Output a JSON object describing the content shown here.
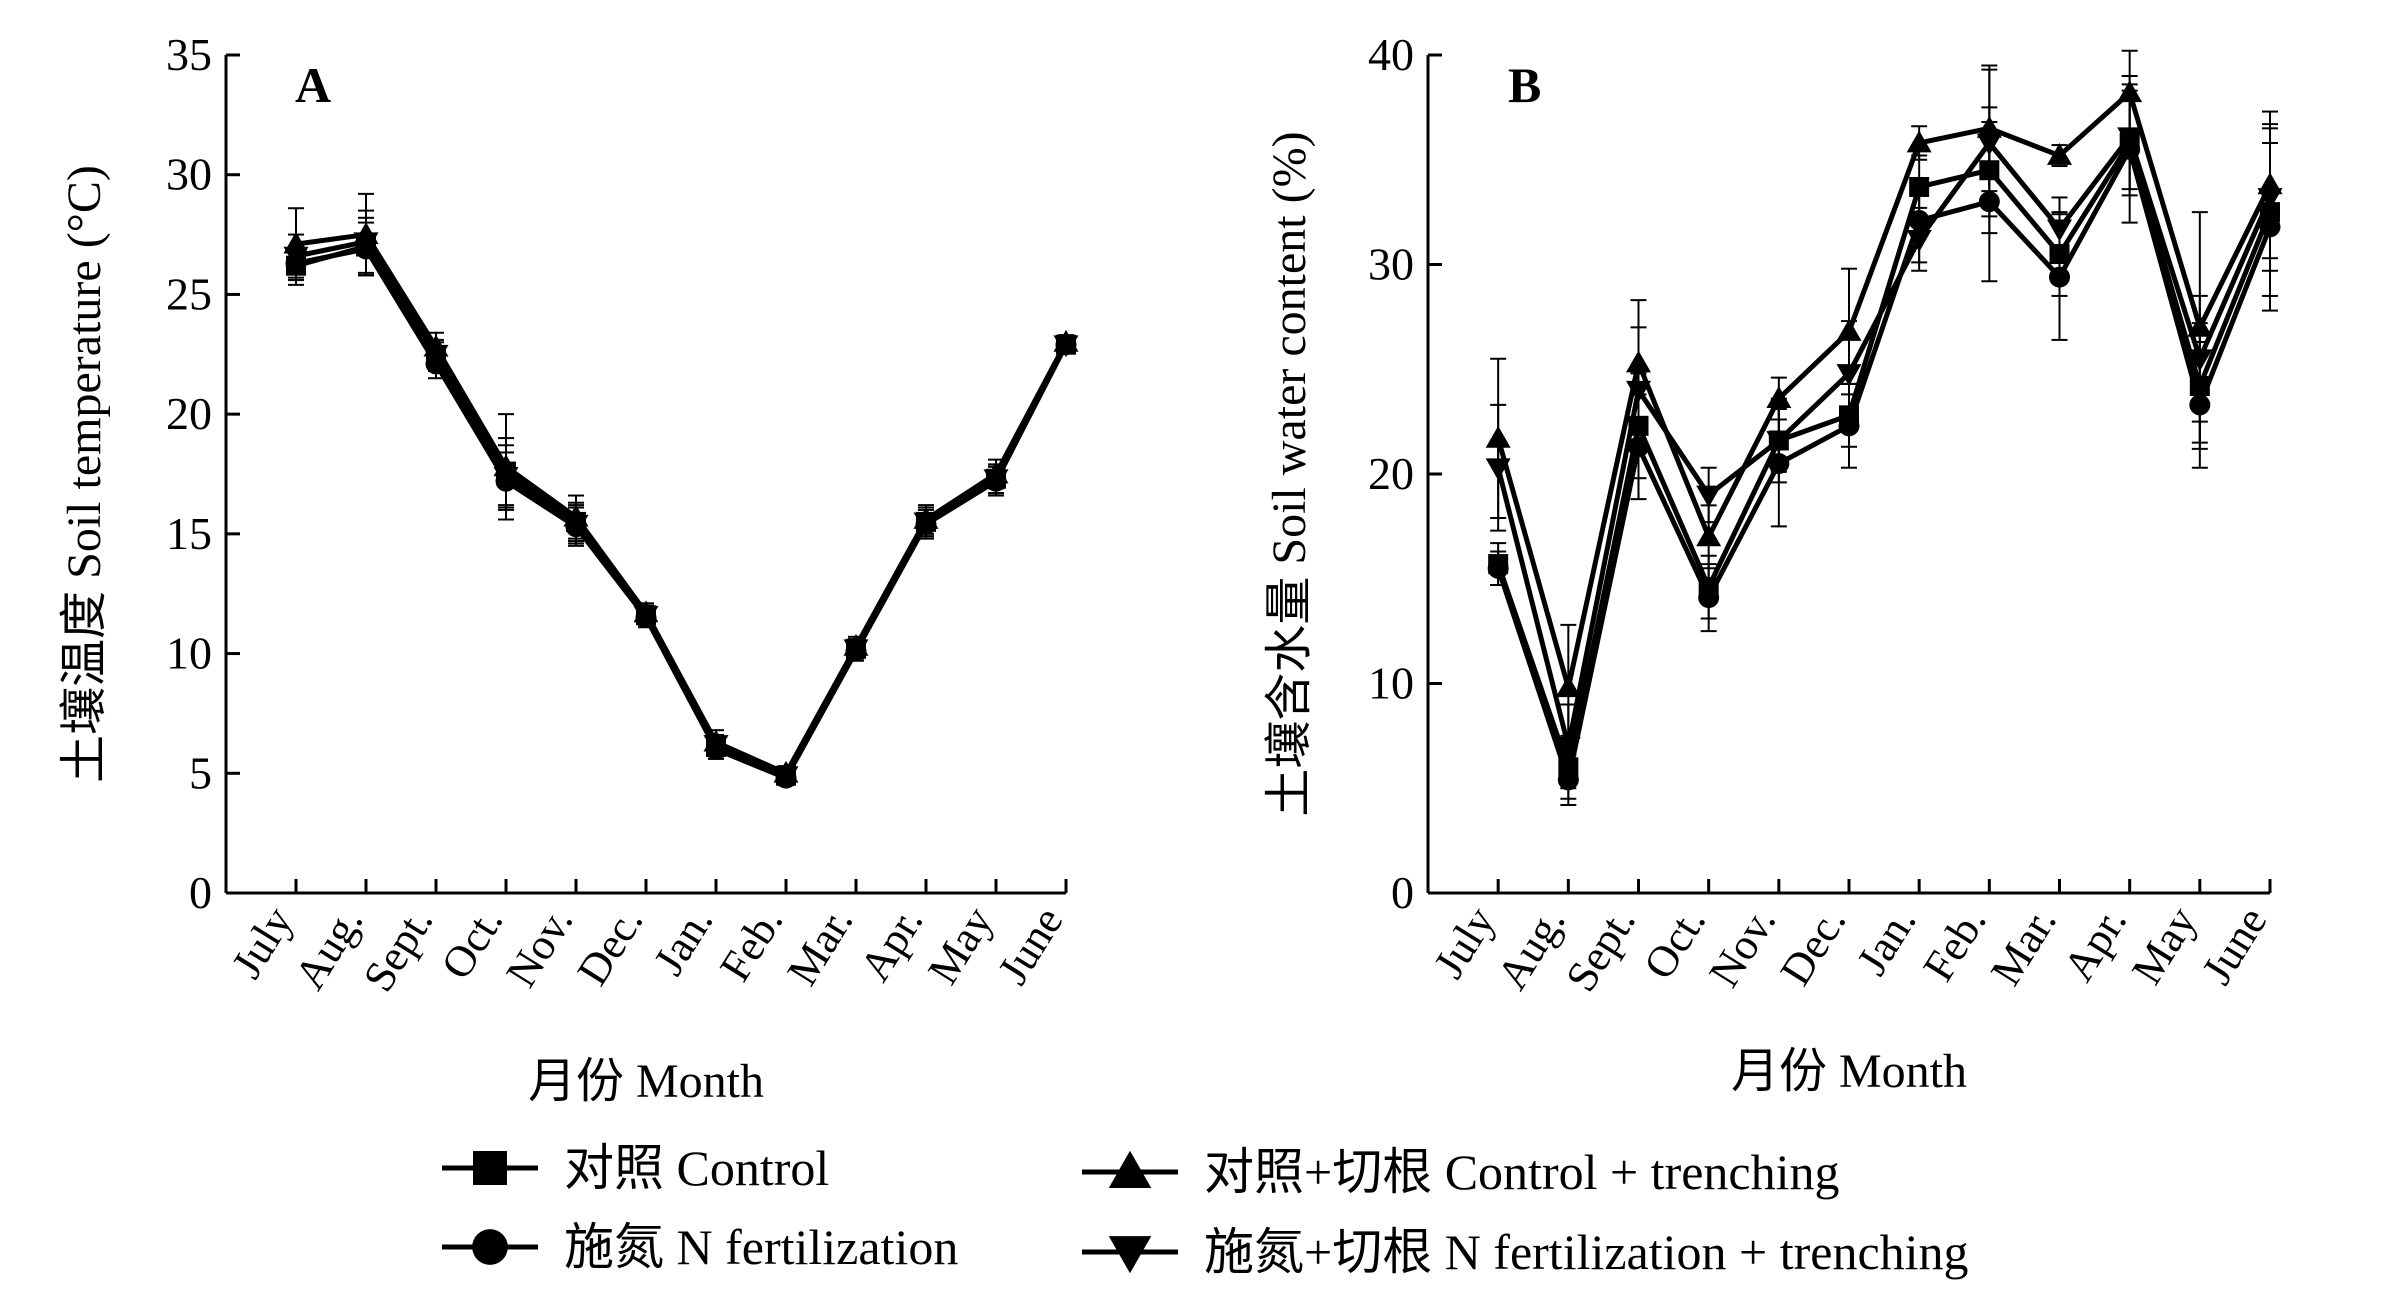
{
  "legend": {
    "items": [
      {
        "label": "对照 Control",
        "marker": "square"
      },
      {
        "label": "施氮 N fertilization",
        "marker": "circle"
      },
      {
        "label": "对照+切根 Control + trenching",
        "marker": "triangle-up"
      },
      {
        "label": "施氮+切根 N fertilization + trenching",
        "marker": "triangle-down"
      }
    ]
  },
  "chart_data": [
    {
      "type": "line",
      "panel": "A",
      "xlabel": "月份 Month",
      "ylabel": "土壤温度 Soil temperature (°C)",
      "ylim": [
        0,
        35
      ],
      "yticks": [
        "0",
        "5",
        "10",
        "15",
        "20",
        "25",
        "30",
        "35"
      ],
      "categories": [
        "July",
        "Aug.",
        "Sept.",
        "Oct.",
        "Nov.",
        "Dec.",
        "Jan.",
        "Feb.",
        "Mar.",
        "Apr.",
        "May",
        "June"
      ],
      "series": [
        {
          "name": "对照 Control",
          "marker": "square",
          "values": [
            26.2,
            27.0,
            22.4,
            17.6,
            15.5,
            11.6,
            6.1,
            4.9,
            10.2,
            15.5,
            17.3,
            22.9
          ],
          "errors": [
            0.8,
            1.2,
            0.6,
            1.4,
            0.8,
            0.4,
            0.4,
            0.3,
            0.4,
            0.6,
            0.6,
            0.3
          ]
        },
        {
          "name": "施氮 N fertilization",
          "marker": "circle",
          "values": [
            26.3,
            26.9,
            22.1,
            17.2,
            15.3,
            11.5,
            6.0,
            4.8,
            10.1,
            15.4,
            17.2,
            22.9
          ],
          "errors": [
            0.7,
            1.1,
            0.6,
            1.2,
            0.8,
            0.4,
            0.4,
            0.3,
            0.4,
            0.6,
            0.6,
            0.3
          ]
        },
        {
          "name": "对照+切根 Control + trenching",
          "marker": "triangle-up",
          "values": [
            27.1,
            27.5,
            22.8,
            17.8,
            15.7,
            11.7,
            6.3,
            5.0,
            10.3,
            15.6,
            17.5,
            23.0
          ],
          "errors": [
            1.5,
            1.7,
            0.6,
            2.2,
            0.9,
            0.4,
            0.5,
            0.3,
            0.4,
            0.6,
            0.6,
            0.3
          ]
        },
        {
          "name": "施氮+切根 N fertilization + trenching",
          "marker": "triangle-down",
          "values": [
            26.6,
            27.2,
            22.5,
            17.4,
            15.4,
            11.6,
            6.2,
            4.9,
            10.2,
            15.5,
            17.3,
            22.9
          ],
          "errors": [
            0.9,
            1.3,
            0.6,
            1.3,
            0.8,
            0.4,
            0.4,
            0.3,
            0.4,
            0.6,
            0.6,
            0.3
          ]
        }
      ]
    },
    {
      "type": "line",
      "panel": "B",
      "xlabel": "月份 Month",
      "ylabel": "土壤含水量 Soil water content (%)",
      "ylim": [
        0,
        40
      ],
      "yticks": [
        "0",
        "10",
        "20",
        "30",
        "40"
      ],
      "categories": [
        "July",
        "Aug.",
        "Sept.",
        "Oct.",
        "Nov.",
        "Dec.",
        "Jan.",
        "Feb.",
        "Mar.",
        "Apr.",
        "May",
        "June"
      ],
      "series": [
        {
          "name": "对照 Control",
          "marker": "square",
          "values": [
            15.7,
            6.0,
            22.3,
            14.6,
            21.6,
            22.8,
            33.7,
            34.5,
            30.5,
            35.8,
            24.2,
            32.5
          ],
          "errors": [
            1.0,
            1.5,
            2.5,
            1.5,
            2.0,
            1.5,
            1.5,
            3.0,
            2.0,
            2.5,
            3.0,
            4.0
          ]
        },
        {
          "name": "施氮 N fertilization",
          "marker": "circle",
          "values": [
            15.5,
            5.4,
            21.3,
            14.1,
            20.5,
            22.3,
            32.1,
            33.0,
            29.4,
            35.5,
            23.3,
            31.8
          ],
          "errors": [
            0.8,
            1.2,
            2.5,
            1.6,
            3.0,
            2.0,
            2.0,
            3.8,
            3.0,
            3.5,
            3.0,
            4.0
          ]
        },
        {
          "name": "对照+切根 Control + trenching",
          "marker": "triangle-up",
          "values": [
            21.7,
            9.8,
            25.3,
            17.0,
            23.6,
            26.8,
            35.8,
            36.5,
            35.2,
            38.2,
            27.0,
            33.8
          ],
          "errors": [
            3.8,
            3.0,
            3.0,
            1.5,
            1.0,
            3.0,
            0.8,
            3.0,
            0.5,
            2.0,
            5.5,
            3.5
          ]
        },
        {
          "name": "施氮+切根 N fertilization + trenching",
          "marker": "triangle-down",
          "values": [
            20.3,
            7.0,
            24.0,
            19.0,
            21.6,
            24.8,
            31.2,
            35.8,
            31.7,
            36.1,
            25.5,
            33.2
          ],
          "errors": [
            3.0,
            2.0,
            3.0,
            1.3,
            1.5,
            2.5,
            1.5,
            3.5,
            1.5,
            2.5,
            3.0,
            3.5
          ]
        }
      ]
    }
  ]
}
